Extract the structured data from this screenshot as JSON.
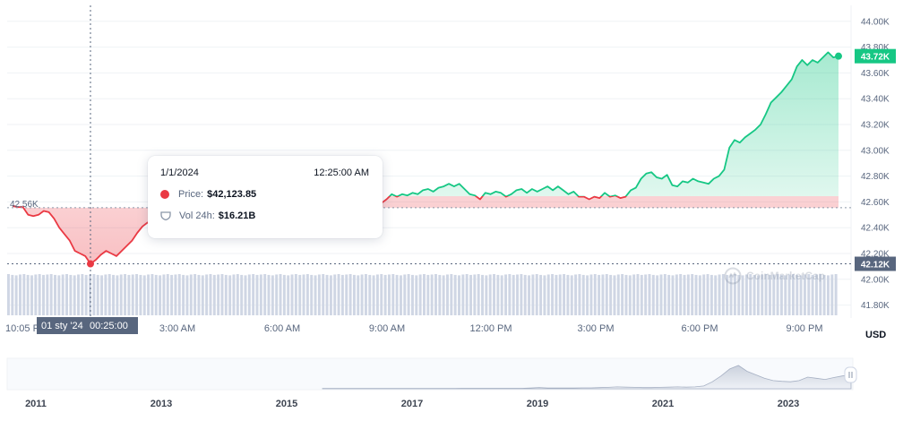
{
  "chart_data": {
    "type": "area",
    "currency": "USD",
    "y_axis": {
      "min": 41.7,
      "max": 44.05,
      "ticks": [
        "44.00K",
        "43.80K",
        "43.60K",
        "43.40K",
        "43.20K",
        "43.00K",
        "42.80K",
        "42.60K",
        "42.40K",
        "42.20K",
        "42.00K",
        "41.80K"
      ]
    },
    "x_axis_time": [
      "3:00 AM",
      "6:00 AM",
      "9:00 AM",
      "12:00 PM",
      "3:00 PM",
      "6:00 PM",
      "9:00 PM"
    ],
    "x_axis_partial_label": "10:05 P",
    "crosshair_labels": {
      "date": "01 sty '24",
      "time": "00:25:00"
    },
    "baseline": {
      "label": "42.56K",
      "value": 42.555
    },
    "current_price_label": "43.72K",
    "crosshair_price_label": "42.12K",
    "tooltip": {
      "date": "1/1/2024",
      "time": "12:25:00 AM",
      "price_label": "Price:",
      "price_value": "$42,123.85",
      "vol_label": "Vol 24h:",
      "vol_value": "$16.21B"
    },
    "series": [
      {
        "values": [
          42.57,
          42.56,
          42.56,
          42.5,
          42.49,
          42.5,
          42.53,
          42.52,
          42.47,
          42.4,
          42.35,
          42.3,
          42.22,
          42.2,
          42.18,
          42.12,
          42.15,
          42.19,
          42.22,
          42.2,
          42.18,
          42.22,
          42.26,
          42.3,
          42.36,
          42.41,
          42.44,
          42.42,
          42.4,
          42.45,
          42.47,
          42.44,
          42.42,
          42.44,
          42.46,
          42.45,
          42.44,
          42.43,
          42.45,
          42.46,
          42.44,
          42.43,
          42.45,
          42.46,
          42.44,
          42.44,
          42.45,
          42.44,
          42.45,
          42.46,
          42.45,
          42.46,
          42.45,
          42.46,
          42.44,
          42.45,
          42.46,
          42.45,
          42.44,
          42.44,
          42.45,
          42.44,
          42.43,
          42.45,
          42.45,
          42.47,
          42.49,
          42.51,
          42.53,
          42.55,
          42.57,
          42.59,
          42.62,
          42.66,
          42.64,
          42.66,
          42.65,
          42.67,
          42.66,
          42.69,
          42.7,
          42.68,
          42.71,
          42.72,
          42.74,
          42.72,
          42.74,
          42.7,
          42.66,
          42.65,
          42.62,
          42.67,
          42.66,
          42.68,
          42.67,
          42.64,
          42.66,
          42.69,
          42.7,
          42.67,
          42.7,
          42.68,
          42.7,
          42.72,
          42.69,
          42.72,
          42.69,
          42.66,
          42.68,
          42.64,
          42.64,
          42.62,
          42.64,
          42.63,
          42.67,
          42.64,
          42.65,
          42.63,
          42.64,
          42.69,
          42.71,
          42.78,
          42.82,
          42.83,
          42.79,
          42.78,
          42.81,
          42.73,
          42.72,
          42.76,
          42.75,
          42.78,
          42.76,
          42.75,
          42.74,
          42.78,
          42.8,
          42.85,
          43.02,
          43.08,
          43.06,
          43.1,
          43.13,
          43.16,
          43.2,
          43.28,
          43.37,
          43.41,
          43.45,
          43.5,
          43.55,
          43.65,
          43.7,
          43.66,
          43.7,
          43.68,
          43.72,
          43.76,
          43.72,
          43.73
        ]
      }
    ],
    "volume": [
      1,
      0.98,
      0.97,
      0.99,
      1,
      0.98,
      0.97,
      0.99,
      1,
      0.98,
      0.99,
      1,
      0.98,
      0.97,
      0.99,
      1,
      0.98,
      0.97,
      0.99,
      1,
      0.98,
      0.99,
      1,
      0.98,
      0.97,
      0.99,
      1,
      0.98,
      0.97,
      0.99,
      1,
      0.98,
      0.99,
      1,
      0.98,
      0.97,
      0.99,
      1,
      0.98,
      0.97,
      0.99,
      1,
      0.98,
      0.99,
      1,
      0.98,
      0.97,
      0.99,
      1,
      0.98,
      0.97,
      0.99,
      1,
      0.98,
      0.99,
      1,
      0.98,
      0.97,
      0.99,
      1,
      0.98,
      0.97,
      0.99,
      1,
      0.98,
      0.99,
      1,
      0.98,
      0.97,
      0.99,
      1,
      0.98,
      0.97,
      0.99,
      1,
      0.98,
      0.99,
      1,
      0.98,
      0.97,
      0.99,
      1,
      0.98,
      0.97,
      0.99,
      1,
      0.98,
      0.99,
      1,
      0.98,
      0.97,
      0.99,
      1,
      0.98,
      0.97,
      0.99,
      1,
      0.98,
      0.99,
      1,
      0.98,
      0.97,
      0.99,
      1,
      0.98,
      0.97,
      0.99,
      1,
      0.98,
      0.99,
      1,
      0.98,
      0.97,
      0.99,
      1,
      0.98,
      0.97,
      0.99,
      1,
      0.98,
      0.99,
      1,
      0.98,
      0.97,
      0.99,
      1,
      0.98,
      0.97,
      0.99,
      1,
      0.98,
      0.99,
      1,
      0.98,
      0.97,
      0.99,
      1,
      0.98,
      0.97,
      0.99,
      1,
      0.98,
      0.99,
      1,
      0.98,
      0.97,
      0.99,
      1,
      0.98,
      0.97,
      0.99,
      1,
      0.98,
      0.99,
      1,
      0.98,
      0.97,
      0.99,
      1,
      0.98,
      0.97,
      0.99,
      1,
      0.98,
      0.99,
      1,
      0.98,
      0.97,
      0.99,
      1,
      0.98,
      0.97,
      0.99,
      1,
      0.98,
      0.99,
      1,
      0.98,
      0.97,
      0.99,
      1,
      0.98,
      0.97,
      0.99,
      1,
      0.98,
      0.99,
      1,
      0.98,
      0.97,
      0.99,
      1,
      0.98,
      0.97,
      0.99,
      1,
      0.98,
      0.99,
      1,
      0.98,
      0.97,
      0.99,
      1,
      0.98,
      0.97,
      0.99,
      1,
      0.98,
      0.99,
      1,
      0.98,
      0.97,
      0.99,
      1
    ],
    "navigator": {
      "years": [
        "2011",
        "2013",
        "2015",
        "2017",
        "2019",
        "2021",
        "2023"
      ],
      "values": [
        0.01,
        0.01,
        0.01,
        0.01,
        0.01,
        0.01,
        0.01,
        0.01,
        0.01,
        0.01,
        0.01,
        0.01,
        0.01,
        0.01,
        0.01,
        0.01,
        0.02,
        0.02,
        0.02,
        0.02,
        0.02,
        0.02,
        0.02,
        0.02,
        0.03,
        0.05,
        0.03,
        0.03,
        0.03,
        0.03,
        0.04,
        0.04,
        0.05,
        0.06,
        0.08,
        0.07,
        0.06,
        0.05,
        0.05,
        0.06,
        0.07,
        0.08,
        0.07,
        0.08,
        0.12,
        0.3,
        0.55,
        0.85,
        1,
        0.75,
        0.6,
        0.45,
        0.35,
        0.32,
        0.3,
        0.35,
        0.5,
        0.45,
        0.4,
        0.48,
        0.55,
        0.6
      ]
    },
    "colors": {
      "up": "#16c784",
      "down": "#ea3943",
      "grid": "#eff2f5",
      "axis_label_bg": "#58667e",
      "watermark": "#a6b0c3"
    },
    "grid": true
  },
  "watermark_text": "CoinMarketCap",
  "usd_label": "USD"
}
